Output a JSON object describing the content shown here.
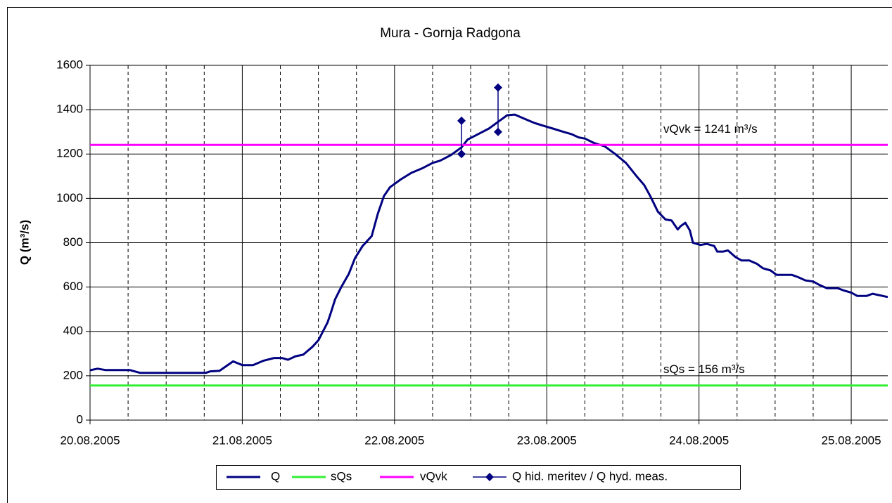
{
  "chart_data": {
    "type": "line",
    "title": "Mura - Gornja Radgona",
    "y_label": "Q (m³/s)",
    "xlim": [
      0,
      5.24
    ],
    "xticks": [
      {
        "value": 0,
        "label": "20.08.2005"
      },
      {
        "value": 1,
        "label": "21.08.2005"
      },
      {
        "value": 2,
        "label": "22.08.2005"
      },
      {
        "value": 3,
        "label": "23.08.2005"
      },
      {
        "value": 4,
        "label": "24.08.2005"
      },
      {
        "value": 5,
        "label": "25.08.2005"
      }
    ],
    "x_minor_grid": [
      0.25,
      0.5,
      0.75,
      1.25,
      1.5,
      1.75,
      2.25,
      2.5,
      2.75,
      3.25,
      3.5,
      3.75,
      4.25,
      4.5,
      4.75
    ],
    "ylim": [
      0,
      1600
    ],
    "yticks": [
      0,
      200,
      400,
      600,
      800,
      1000,
      1200,
      1400,
      1600
    ],
    "grid": true,
    "legend": "bottom",
    "series": [
      {
        "name": "Q",
        "color": "#000080",
        "x": [
          0,
          0.05,
          0.1,
          0.26,
          0.33,
          0.5,
          0.76,
          0.79,
          0.85,
          0.94,
          1.0,
          1.07,
          1.14,
          1.21,
          1.26,
          1.3,
          1.35,
          1.4,
          1.46,
          1.5,
          1.56,
          1.58,
          1.61,
          1.65,
          1.7,
          1.74,
          1.79,
          1.85,
          1.89,
          1.93,
          1.97,
          2.04,
          2.11,
          2.18,
          2.25,
          2.3,
          2.37,
          2.44,
          2.48,
          2.55,
          2.62,
          2.69,
          2.74,
          2.79,
          2.85,
          2.92,
          2.99,
          3.04,
          3.11,
          3.16,
          3.21,
          3.25,
          3.31,
          3.38,
          3.45,
          3.52,
          3.59,
          3.64,
          3.68,
          3.73,
          3.78,
          3.82,
          3.86,
          3.88,
          3.91,
          3.94,
          3.96,
          4.01,
          4.05,
          4.1,
          4.12,
          4.16,
          4.19,
          4.24,
          4.28,
          4.33,
          4.38,
          4.42,
          4.47,
          4.51,
          4.61,
          4.65,
          4.7,
          4.75,
          4.79,
          4.84,
          4.91,
          4.95,
          5.0,
          5.04,
          5.1,
          5.14,
          5.24
        ],
        "values": [
          225,
          232,
          226,
          226,
          213,
          213,
          213,
          220,
          222,
          265,
          248,
          248,
          268,
          280,
          280,
          272,
          288,
          295,
          330,
          360,
          440,
          480,
          545,
          600,
          660,
          730,
          785,
          830,
          930,
          1010,
          1050,
          1085,
          1115,
          1135,
          1160,
          1170,
          1195,
          1230,
          1265,
          1290,
          1315,
          1350,
          1375,
          1378,
          1360,
          1340,
          1325,
          1315,
          1300,
          1290,
          1275,
          1270,
          1250,
          1235,
          1200,
          1160,
          1100,
          1060,
          1010,
          940,
          905,
          900,
          860,
          875,
          890,
          855,
          800,
          790,
          795,
          785,
          760,
          760,
          765,
          735,
          720,
          720,
          705,
          685,
          675,
          655,
          655,
          645,
          630,
          625,
          610,
          595,
          595,
          585,
          575,
          560,
          560,
          570,
          555
        ]
      },
      {
        "name": "sQs",
        "color": "#33ee33",
        "x": [
          0,
          5.24
        ],
        "values": [
          156,
          156
        ]
      },
      {
        "name": "vQvk",
        "color": "#ff00ff",
        "x": [
          0,
          5.24
        ],
        "values": [
          1241,
          1241
        ]
      },
      {
        "name": "Q hid. meritev / Q hyd. meas.",
        "color": "#000080",
        "marker": "diamond",
        "x": [
          2.44,
          2.44,
          2.44,
          2.68,
          2.68
        ],
        "values": [
          1350,
          1200,
          null,
          1500,
          1300
        ]
      }
    ],
    "annotations": [
      "vQvk = 1241 m³/s",
      "sQs = 156 m³/s"
    ]
  }
}
